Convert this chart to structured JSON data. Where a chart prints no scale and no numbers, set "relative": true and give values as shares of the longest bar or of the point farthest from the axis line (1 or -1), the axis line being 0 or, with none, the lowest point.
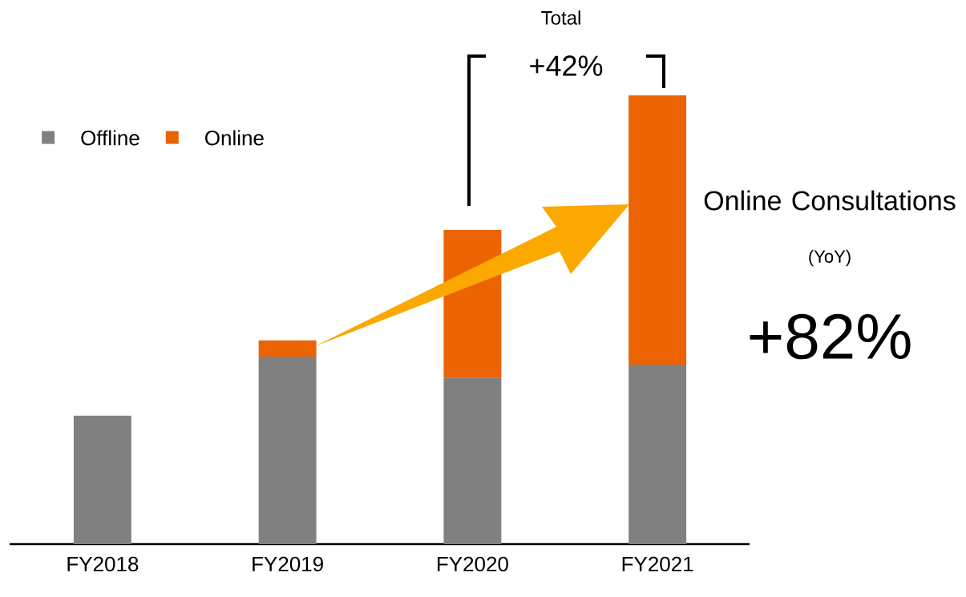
{
  "chart_data": {
    "type": "bar",
    "stacked": true,
    "relative": true,
    "categories": [
      "FY2018",
      "FY2019",
      "FY2020",
      "FY2021"
    ],
    "series": [
      {
        "name": "Offline",
        "color": "#808080",
        "values": [
          0.286,
          0.418,
          0.371,
          0.4
        ]
      },
      {
        "name": "Online",
        "color": "#ec6304",
        "values": [
          null,
          0.036,
          0.329,
          0.6
        ]
      }
    ],
    "legend": "top left",
    "annotations": [
      "Total",
      "+42%",
      "Online Consultations",
      "(YoY)",
      "+82%"
    ]
  }
}
